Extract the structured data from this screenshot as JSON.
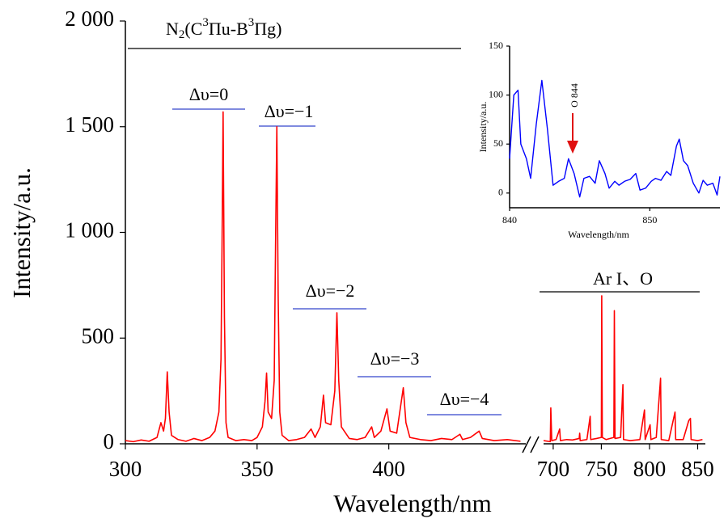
{
  "chart_data": [
    {
      "type": "line",
      "x_label": "Wavelength/nm",
      "y_label": "Intensity/a.u.",
      "xlim": [
        300,
        452
      ],
      "ylim": [
        0,
        2000
      ],
      "xticks": [
        300,
        350,
        400
      ],
      "yticks": [
        0,
        500,
        {
          "value": 1000,
          "label": "1 000"
        },
        {
          "value": 1500,
          "label": "1 500"
        },
        {
          "value": 2000,
          "label": "2 000"
        }
      ],
      "series": [
        {
          "color": "#ff0000",
          "x": [
            300,
            303,
            306,
            309,
            312,
            313.5,
            314.5,
            315.2,
            315.9,
            316.6,
            317.5,
            320,
            323,
            326,
            329,
            332,
            334,
            335.5,
            336.3,
            336.7,
            337.1,
            337.6,
            338.2,
            339,
            342,
            345,
            348,
            350,
            352,
            353,
            353.6,
            354.2,
            355.5,
            356.5,
            357,
            357.5,
            358,
            358.6,
            359.5,
            362,
            365,
            368,
            370.5,
            372,
            374,
            375.2,
            376,
            378,
            379.5,
            380.3,
            381,
            382,
            385,
            388,
            391,
            393.5,
            394.5,
            397,
            399.3,
            400.5,
            403,
            405.5,
            406.5,
            408,
            412,
            416,
            420,
            424,
            427,
            428,
            431,
            434.3,
            435.5,
            440,
            445,
            450
          ],
          "values": [
            15,
            10,
            18,
            12,
            30,
            100,
            60,
            120,
            340,
            150,
            40,
            20,
            12,
            25,
            15,
            30,
            60,
            150,
            400,
            950,
            1570,
            600,
            100,
            30,
            15,
            20,
            15,
            30,
            80,
            200,
            335,
            150,
            120,
            300,
            930,
            1500,
            700,
            150,
            40,
            15,
            20,
            30,
            70,
            30,
            80,
            230,
            100,
            90,
            250,
            620,
            300,
            80,
            25,
            20,
            30,
            80,
            30,
            60,
            165,
            60,
            50,
            265,
            100,
            30,
            20,
            15,
            25,
            20,
            45,
            20,
            30,
            60,
            25,
            15,
            20,
            12
          ]
        }
      ],
      "annotations": {
        "n2": [
          "N",
          "2",
          "(C",
          "3",
          "Πu-B",
          "3",
          "Πg)"
        ],
        "bands": [
          "Δυ=0",
          "Δυ=−1",
          "Δυ=−2",
          "Δυ=−3",
          "Δυ=−4"
        ],
        "ar": "Ar I、O"
      }
    },
    {
      "type": "line",
      "xlim": [
        690,
        858
      ],
      "ylim": [
        0,
        2000
      ],
      "xticks": [
        700,
        750,
        800,
        850
      ],
      "series": [
        {
          "color": "#ff0000",
          "x": [
            690,
            697,
            697.5,
            698.5,
            703,
            706.7,
            707.5,
            714,
            720,
            727,
            727.5,
            728,
            735,
            738.4,
            739,
            745,
            750,
            750.4,
            751,
            755,
            763,
            763.5,
            764.2,
            770,
            772.4,
            773,
            780,
            790,
            794.8,
            795.5,
            800.6,
            801.5,
            807,
            811.5,
            812.2,
            820,
            826.5,
            827.2,
            835,
            840.8,
            842.5,
            843.2,
            850,
            855
          ],
          "values": [
            15,
            10,
            170,
            15,
            20,
            70,
            15,
            20,
            18,
            25,
            50,
            15,
            20,
            130,
            20,
            25,
            30,
            700,
            30,
            20,
            30,
            630,
            25,
            30,
            280,
            20,
            15,
            20,
            160,
            20,
            90,
            20,
            30,
            310,
            20,
            15,
            150,
            20,
            20,
            110,
            120,
            20,
            15,
            20
          ]
        }
      ]
    },
    {
      "type": "line",
      "x_label": "Wavelength/nm",
      "y_label": "Intensity/a.u.",
      "xlim": [
        840,
        855
      ],
      "ylim": [
        -15,
        150
      ],
      "xticks": [
        840,
        850
      ],
      "yticks": [
        0,
        50,
        100,
        150
      ],
      "annotation": "O 844",
      "series": [
        {
          "color": "#0000ff",
          "x": [
            840,
            840.3,
            840.6,
            840.8,
            841.2,
            841.5,
            841.9,
            842.3,
            842.7,
            843.1,
            843.5,
            843.9,
            844.2,
            844.6,
            845,
            845.3,
            845.7,
            846.1,
            846.4,
            846.8,
            847.1,
            847.5,
            847.8,
            848.2,
            848.6,
            849,
            849.3,
            849.7,
            850.1,
            850.4,
            850.8,
            851.2,
            851.5,
            851.9,
            852.1,
            852.4,
            852.7,
            853.1,
            853.5,
            853.8,
            854.1,
            854.5,
            854.8,
            855
          ],
          "values": [
            35,
            100,
            105,
            50,
            35,
            15,
            70,
            115,
            65,
            8,
            12,
            15,
            35,
            20,
            -4,
            15,
            17,
            10,
            33,
            20,
            5,
            12,
            8,
            12,
            14,
            20,
            3,
            5,
            12,
            15,
            13,
            22,
            18,
            48,
            55,
            33,
            28,
            10,
            0,
            13,
            8,
            10,
            -2,
            17
          ]
        }
      ]
    }
  ]
}
